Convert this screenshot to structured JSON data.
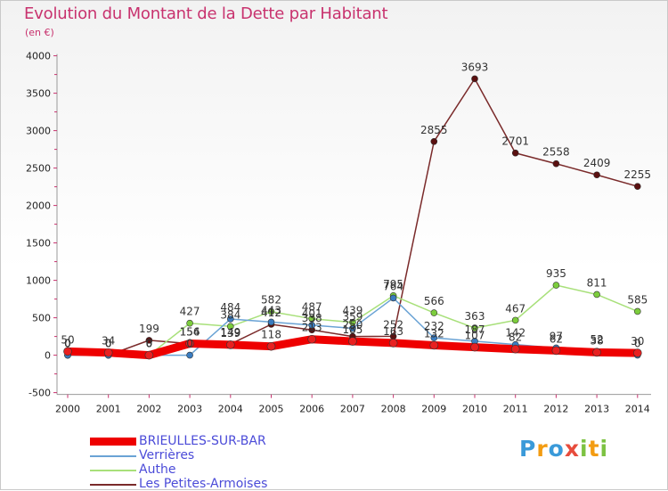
{
  "title": "Evolution du Montant de la Dette par Habitant",
  "subtitle": "(en €)",
  "logo": {
    "text": "Proxiti",
    "letters": [
      "P",
      "r",
      "o",
      "x",
      "i",
      "t",
      "i"
    ],
    "colors": [
      "#3a9ad9",
      "#f39c12",
      "#3a9ad9",
      "#e74c3c",
      "#7dc242",
      "#f39c12",
      "#7dc242"
    ]
  },
  "chart_data": {
    "type": "line",
    "title": "Evolution du Montant de la Dette par Habitant",
    "ylabel": "(en €)",
    "xlabel": "",
    "ylim": [
      -500,
      4000
    ],
    "y_ticks": [
      -500,
      0,
      500,
      1000,
      1500,
      2000,
      2500,
      3000,
      3500,
      4000
    ],
    "x": [
      "2000",
      "2001",
      "2002",
      "2003",
      "2004",
      "2005",
      "2006",
      "2007",
      "2008",
      "2009",
      "2010",
      "2011",
      "2012",
      "2013",
      "2014"
    ],
    "grid": false,
    "series": [
      {
        "name": "BRIEULLES-SUR-BAR",
        "color": "#ee0000",
        "marker_color": "#e82020",
        "width": 9,
        "values": [
          50,
          34,
          0,
          156,
          139,
          118,
          213,
          185,
          163,
          132,
          107,
          82,
          62,
          38,
          30
        ],
        "labels": [
          "50",
          "34",
          "0",
          "156",
          "139",
          "118",
          "213",
          "185",
          "163",
          "132",
          "107",
          "82",
          "62",
          "38",
          "30"
        ]
      },
      {
        "name": "Verrières",
        "color": "#6aa3d5",
        "marker_color": "#3a7cc0",
        "width": 1.5,
        "values": [
          0,
          0,
          0,
          0,
          484,
          443,
          401,
          359,
          764,
          232,
          187,
          142,
          97,
          52,
          0
        ],
        "labels": [
          "0",
          "0",
          "0",
          "0",
          "484",
          "443",
          "401",
          "359",
          "764",
          "232",
          "187",
          "142",
          "97",
          "52",
          "0"
        ]
      },
      {
        "name": "Authe",
        "color": "#a8e07a",
        "marker_color": "#7ccd3c",
        "width": 1.5,
        "values": [
          0,
          0,
          0,
          427,
          384,
          582,
          487,
          439,
          795,
          566,
          363,
          467,
          935,
          811,
          585
        ],
        "labels": [
          "0",
          "0",
          "0",
          "427",
          "384",
          "582",
          "487",
          "439",
          "795",
          "566",
          "363",
          "467",
          "935",
          "811",
          "585"
        ]
      },
      {
        "name": "Les Petites-Armoises",
        "color": "#7a2a2a",
        "marker_color": "#5a1010",
        "width": 1.5,
        "values": [
          0,
          0,
          199,
          154,
          149,
          412,
          338,
          250,
          252,
          2855,
          3693,
          2701,
          2558,
          2409,
          2255
        ],
        "labels": [
          "0",
          "0",
          "199",
          "154",
          "149",
          "412",
          "338",
          "250",
          "252",
          "2855",
          "3693",
          "2701",
          "2558",
          "2409",
          "2255"
        ]
      }
    ]
  }
}
